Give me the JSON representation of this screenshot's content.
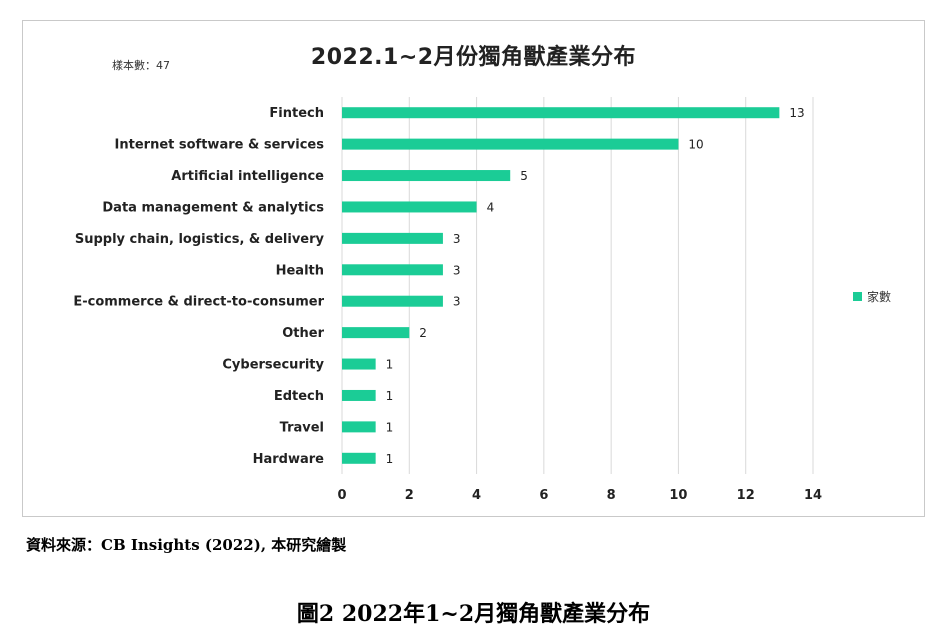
{
  "sample_note": "樣本數：47",
  "legend_label": "家數",
  "source_note": "資料來源：CB Insights (2022), 本研究繪製",
  "figure_caption": "圖2  2022年1~2月獨角獸產業分布",
  "colors": {
    "bar": "#1bcc96",
    "grid": "#d9d9d9"
  },
  "chart_data": {
    "type": "bar",
    "orientation": "horizontal",
    "title": "2022.1~2月份獨角獸產業分布",
    "categories": [
      "Fintech",
      "Internet software & services",
      "Artificial intelligence",
      "Data management & analytics",
      "Supply chain, logistics, & delivery",
      "Health",
      "E-commerce & direct-to-consumer",
      "Other",
      "Cybersecurity",
      "Edtech",
      "Travel",
      "Hardware"
    ],
    "series": [
      {
        "name": "家數",
        "values": [
          13,
          10,
          5,
          4,
          3,
          3,
          3,
          2,
          1,
          1,
          1,
          1
        ]
      }
    ],
    "xlim": [
      0,
      14
    ],
    "xticks": [
      0,
      2,
      4,
      6,
      8,
      10,
      12,
      14
    ],
    "grid": true,
    "legend": "right"
  }
}
